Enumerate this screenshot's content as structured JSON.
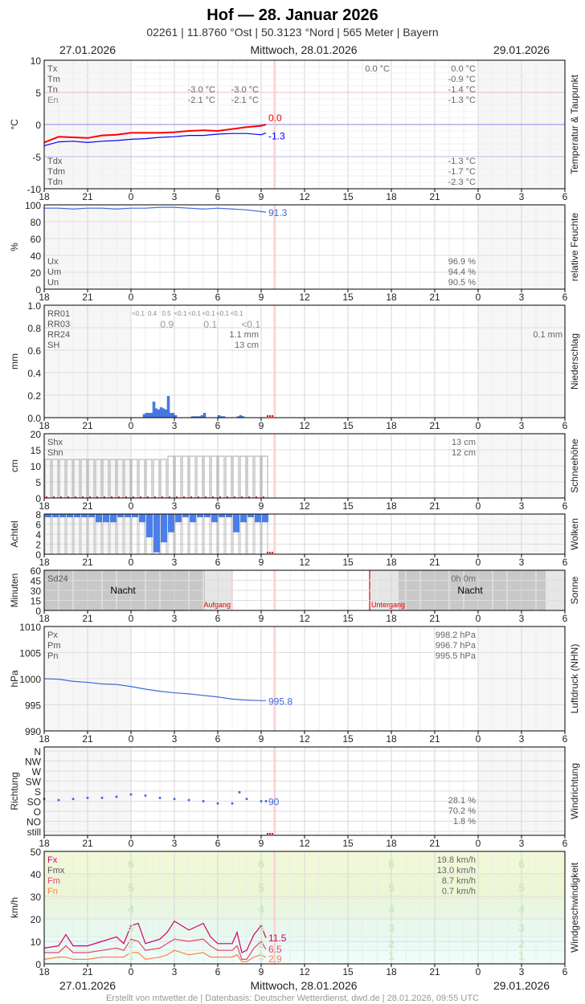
{
  "header": {
    "title": "Hof  —  28. Januar 2026",
    "subtitle": "02261  |  11.8760 °Ost  |  50.3123 °Nord  |  565 Meter  |  Bayern",
    "date_left": "27.01.2026",
    "date_center": "Mittwoch, 28.01.2026",
    "date_right": "29.01.2026"
  },
  "footer": "Erstellt von mtwetter.de | Datenbasis: Deutscher Wetterdienst, dwd.de | 28.01.2026, 09:55 UTC",
  "hour_ticks": [
    "18",
    "21",
    "0",
    "3",
    "6",
    "9",
    "12",
    "15",
    "18",
    "21",
    "0",
    "3",
    "6"
  ],
  "colors": {
    "temp": "#ff0000",
    "dew": "#0000ff",
    "humidity": "#4169e1",
    "bars": "#4a7ee8",
    "now_line": "#ffcccc",
    "fx": "#cc0066",
    "fm": "#e8436a",
    "fn": "#ff8040"
  },
  "chart_data": [
    {
      "id": "temp",
      "type": "line",
      "title": "Temperatur & Taupunkt",
      "ylabel": "°C",
      "ylim": [
        -10,
        10
      ],
      "y_ticks": [
        "10",
        "5",
        "0",
        "-5",
        "-10"
      ],
      "times": [
        "18:00",
        "19:00",
        "20:00",
        "21:00",
        "22:00",
        "23:00",
        "00:00",
        "01:00",
        "02:00",
        "03:00",
        "04:00",
        "05:00",
        "06:00",
        "07:00",
        "08:00",
        "09:00",
        "09:20"
      ],
      "series": [
        {
          "key": "temp",
          "values": [
            -2.8,
            -1.9,
            -2.0,
            -2.1,
            -1.7,
            -1.6,
            -1.3,
            -1.3,
            -1.3,
            -1.2,
            -1.0,
            -0.9,
            -1.0,
            -0.7,
            -0.4,
            -0.2,
            0.0
          ],
          "end_label": "0.0"
        },
        {
          "key": "dew",
          "values": [
            -3.3,
            -2.7,
            -2.6,
            -2.8,
            -2.6,
            -2.5,
            -2.3,
            -2.2,
            -2.0,
            -1.9,
            -1.7,
            -1.7,
            -1.5,
            -1.4,
            -1.4,
            -1.6,
            -1.3
          ],
          "end_label": "-1.3"
        }
      ],
      "stats_top": [
        {
          "label": "Tx",
          "c1": "",
          "c2": "",
          "c3": "0.0 °C",
          "c4": "0.0 °C"
        },
        {
          "label": "Tm",
          "c1": "",
          "c2": "",
          "c3": "",
          "c4": "-0.9 °C"
        },
        {
          "label": "Tn",
          "c1": "-3.0 °C",
          "c2": "-3.0 °C",
          "c3": "",
          "c4": "-1.4 °C"
        },
        {
          "label": "En",
          "c1": "-2.1 °C",
          "c2": "-2.1 °C",
          "c3": "",
          "c4": "-1.3 °C"
        }
      ],
      "stats_bottom": [
        {
          "label": "Tdx",
          "c4": "-1.3 °C"
        },
        {
          "label": "Tdm",
          "c4": "-1.7 °C"
        },
        {
          "label": "Tdn",
          "c4": "-2.3 °C"
        }
      ]
    },
    {
      "id": "hum",
      "type": "line",
      "title": "relative Feuchte",
      "ylabel": "%",
      "ylim": [
        0,
        100
      ],
      "y_ticks": [
        "100",
        "80",
        "60",
        "40",
        "20",
        "0"
      ],
      "times": [
        "18:00",
        "19:00",
        "20:00",
        "21:00",
        "22:00",
        "23:00",
        "00:00",
        "01:00",
        "02:00",
        "03:00",
        "04:00",
        "05:00",
        "06:00",
        "07:00",
        "08:00",
        "09:00",
        "09:20"
      ],
      "series": [
        {
          "key": "humidity",
          "values": [
            96,
            96,
            95,
            96,
            96,
            95,
            96,
            96,
            97,
            97,
            96,
            95,
            96,
            95,
            94,
            92,
            91.3
          ],
          "end_label": "91.3"
        }
      ],
      "stats_bottom": [
        {
          "label": "Ux",
          "c4": "96.9 %"
        },
        {
          "label": "Um",
          "c4": "94.4 %"
        },
        {
          "label": "Un",
          "c4": "90.5 %"
        }
      ]
    },
    {
      "id": "rain",
      "type": "bar",
      "title": "Niederschlag",
      "ylabel": "mm",
      "ylim": [
        0,
        1.0
      ],
      "y_ticks": [
        "1.0",
        "0.8",
        "0.6",
        "0.4",
        "0.2",
        "0.0"
      ],
      "times": [
        "00:50",
        "01:00",
        "01:10",
        "01:20",
        "01:30",
        "01:40",
        "01:50",
        "02:00",
        "02:10",
        "02:20",
        "02:30",
        "02:40",
        "02:50",
        "03:00",
        "04:10",
        "04:20",
        "04:30",
        "04:40",
        "04:50",
        "05:00",
        "06:00",
        "06:10",
        "06:20",
        "07:20",
        "07:30",
        "07:40"
      ],
      "values": [
        0.03,
        0.04,
        0.04,
        0.04,
        0.14,
        0.08,
        0.07,
        0.09,
        0.08,
        0.07,
        0.19,
        0.04,
        0.04,
        0.02,
        0.01,
        0.01,
        0.01,
        0.01,
        0.02,
        0.04,
        0.02,
        0.01,
        0.01,
        0.01,
        0.02,
        0.01
      ],
      "rr01": [
        "<0.1",
        "0.4",
        "0.5",
        "<0.1",
        "<0.1",
        "<0.1",
        "<0.1",
        "<0.1"
      ],
      "rr03": [
        "0.9",
        "0.1",
        "<0.1"
      ],
      "stats": [
        {
          "label": "RR01"
        },
        {
          "label": "RR03"
        },
        {
          "label": "RR24",
          "c2": "1.1 mm",
          "c4": "0.1 mm"
        },
        {
          "label": "SH",
          "c2": "13 cm"
        }
      ]
    },
    {
      "id": "snow",
      "type": "bar",
      "title": "Schneehöhe",
      "ylabel": "cm",
      "ylim": [
        0,
        20
      ],
      "y_ticks": [
        "20",
        "15",
        "10",
        "5",
        "0"
      ],
      "times": [
        "18:00",
        "18:30",
        "19:00",
        "19:30",
        "20:00",
        "20:30",
        "21:00",
        "21:30",
        "22:00",
        "22:30",
        "23:00",
        "23:30",
        "00:00",
        "00:30",
        "01:00",
        "01:30",
        "02:00",
        "02:30",
        "03:00",
        "03:30",
        "04:00",
        "04:30",
        "05:00",
        "05:30",
        "06:00",
        "06:30",
        "07:00",
        "07:30",
        "08:00",
        "08:30",
        "09:00"
      ],
      "values": [
        12,
        12,
        12,
        12,
        12,
        12,
        12,
        12,
        12,
        12,
        12,
        12,
        12,
        12,
        12,
        12,
        12,
        13,
        13,
        13,
        13,
        13,
        13,
        13,
        13,
        13,
        13,
        13,
        13,
        13,
        13
      ],
      "stats": [
        {
          "label": "Shx",
          "c4": "13 cm"
        },
        {
          "label": "Shn",
          "c4": "12 cm"
        }
      ]
    },
    {
      "id": "cloud",
      "type": "bar",
      "title": "Wolken",
      "ylabel": "Achtel",
      "ylim": [
        0,
        8
      ],
      "y_ticks": [
        "8",
        "6",
        "4",
        "2",
        "0"
      ],
      "times": [
        "18:00",
        "18:30",
        "19:00",
        "19:30",
        "20:00",
        "20:30",
        "21:00",
        "21:30",
        "22:00",
        "22:30",
        "23:00",
        "23:30",
        "00:00",
        "00:30",
        "01:00",
        "01:30",
        "02:00",
        "02:30",
        "03:00",
        "03:30",
        "04:00",
        "04:30",
        "05:00",
        "05:30",
        "06:00",
        "06:30",
        "07:00",
        "07:30",
        "08:00",
        "08:30",
        "09:00"
      ],
      "values": [
        8,
        8,
        8,
        8,
        8,
        8,
        8,
        7,
        7,
        7,
        8,
        8,
        8,
        7,
        4,
        1,
        3,
        5,
        7,
        8,
        7,
        8,
        8,
        7,
        8,
        8,
        5,
        7,
        8,
        7,
        7
      ]
    },
    {
      "id": "sun",
      "type": "bar",
      "title": "Sonne",
      "ylabel": "Minuten",
      "ylim": [
        0,
        60
      ],
      "y_ticks": [
        "60",
        "45",
        "30",
        "15",
        "0"
      ],
      "sunrise_time": "07:00",
      "sunset_time": "16:30",
      "night_label": "Nacht",
      "sunrise_label": "Aufgang",
      "sunset_label": "Untergang",
      "stats": [
        {
          "label": "Sd24",
          "c4": "0h 0m"
        }
      ]
    },
    {
      "id": "press",
      "type": "line",
      "title": "Luftdruck (NHN)",
      "ylabel": "hPa",
      "ylim": [
        990,
        1010
      ],
      "y_ticks": [
        "1010",
        "1005",
        "1000",
        "995",
        "990"
      ],
      "times": [
        "18:00",
        "19:00",
        "20:00",
        "21:00",
        "22:00",
        "23:00",
        "00:00",
        "01:00",
        "02:00",
        "03:00",
        "04:00",
        "05:00",
        "06:00",
        "07:00",
        "08:00",
        "09:00",
        "09:20"
      ],
      "series": [
        {
          "key": "humidity",
          "values": [
            1000.0,
            999.9,
            999.5,
            999.3,
            999.0,
            998.9,
            998.5,
            998.0,
            997.6,
            997.3,
            997.1,
            996.8,
            996.5,
            996.1,
            995.9,
            995.8,
            995.8
          ],
          "end_label": "995.8"
        }
      ],
      "stats": [
        {
          "label": "Px",
          "c4": "998.2 hPa"
        },
        {
          "label": "Pm",
          "c4": "996.7 hPa"
        },
        {
          "label": "Pn",
          "c4": "995.5 hPa"
        }
      ]
    },
    {
      "id": "dir",
      "type": "scatter",
      "title": "Windrichtung",
      "ylabel": "Richtung",
      "y_ticks": [
        "N",
        "NW",
        "W",
        "SW",
        "S",
        "SO",
        "O",
        "NO",
        "still"
      ],
      "times": [
        "18:00",
        "19:00",
        "20:00",
        "21:00",
        "22:00",
        "23:00",
        "00:00",
        "01:00",
        "02:00",
        "03:00",
        "04:00",
        "05:00",
        "06:00",
        "07:00",
        "07:30",
        "08:00",
        "09:00",
        "09:20"
      ],
      "values_deg": [
        100,
        95,
        100,
        105,
        105,
        110,
        120,
        115,
        105,
        100,
        95,
        90,
        80,
        80,
        130,
        100,
        90,
        90
      ],
      "end_label": "90",
      "stats": [
        {
          "label": "",
          "c4": "28.1 %"
        },
        {
          "label": "",
          "c4": "70.2 %"
        },
        {
          "label": "",
          "c4": "1.8 %"
        }
      ]
    },
    {
      "id": "wind",
      "type": "line",
      "title": "Windgeschwindigkeit",
      "ylabel": "km/h",
      "ylim": [
        0,
        50
      ],
      "y_ticks": [
        "50",
        "40",
        "30",
        "20",
        "10",
        "0"
      ],
      "beaufort": [
        "1",
        "2",
        "3",
        "4",
        "5",
        "6"
      ],
      "times": [
        "18:00",
        "19:00",
        "19:30",
        "20:00",
        "21:00",
        "22:00",
        "23:00",
        "23:30",
        "00:00",
        "00:30",
        "01:00",
        "02:00",
        "02:30",
        "03:00",
        "04:00",
        "05:00",
        "05:30",
        "06:00",
        "07:00",
        "07:20",
        "07:40",
        "08:00",
        "08:30",
        "09:00",
        "09:20"
      ],
      "series": [
        {
          "key": "fx",
          "values": [
            7,
            8,
            13,
            8,
            8,
            10,
            12,
            9,
            17,
            18,
            9,
            11,
            14,
            19,
            15,
            18,
            12,
            9,
            9,
            14,
            5,
            6,
            13,
            17,
            11.5
          ],
          "end_label": "11.5"
        },
        {
          "key": "fm",
          "values": [
            5,
            5,
            8,
            5,
            5,
            6,
            7,
            6,
            11,
            10,
            6,
            7,
            9,
            11,
            10,
            11,
            8,
            6,
            6,
            8,
            2,
            2,
            7,
            10,
            6.5
          ],
          "end_label": "6.5"
        },
        {
          "key": "fn",
          "values": [
            2,
            3,
            3,
            2,
            2,
            3,
            3,
            3,
            5,
            5,
            2,
            3,
            4,
            6,
            4,
            5,
            3,
            3,
            3,
            4,
            1,
            1,
            3,
            4,
            2.9
          ],
          "end_label": "2.9"
        }
      ],
      "stats": [
        {
          "label": "Fx",
          "c4": "19.8 km/h"
        },
        {
          "label": "Fmx",
          "c4": "13.0 km/h"
        },
        {
          "label": "Fm",
          "c4": "8.7 km/h"
        },
        {
          "label": "Fn",
          "c4": "0.7 km/h"
        }
      ]
    }
  ]
}
